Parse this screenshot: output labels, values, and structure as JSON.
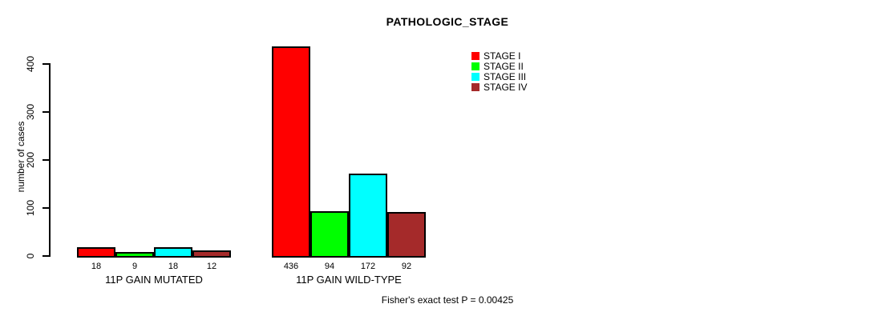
{
  "chart_data": {
    "type": "bar",
    "title": "PATHOLOGIC_STAGE",
    "ylabel": "number of cases",
    "xlabel": "",
    "categories": [
      "11P GAIN MUTATED",
      "11P GAIN WILD-TYPE"
    ],
    "series": [
      {
        "name": "STAGE I",
        "color": "#FF0000",
        "values": [
          18,
          436
        ]
      },
      {
        "name": "STAGE II",
        "color": "#00FF00",
        "values": [
          9,
          94
        ]
      },
      {
        "name": "STAGE III",
        "color": "#00FFFF",
        "values": [
          18,
          172
        ]
      },
      {
        "name": "STAGE IV",
        "color": "#A52A2A",
        "values": [
          12,
          92
        ]
      }
    ],
    "bar_value_labels": [
      [
        "18",
        "9",
        "18",
        "12"
      ],
      [
        "436",
        "94",
        "172",
        "92"
      ]
    ],
    "yticks": [
      "0",
      "100",
      "200",
      "300",
      "400"
    ],
    "ylim": [
      0,
      436
    ],
    "grid": false,
    "legend_position": "top-right",
    "bar_border_color": "#000000",
    "annotation": "Fisher's exact test P = 0.00425"
  }
}
